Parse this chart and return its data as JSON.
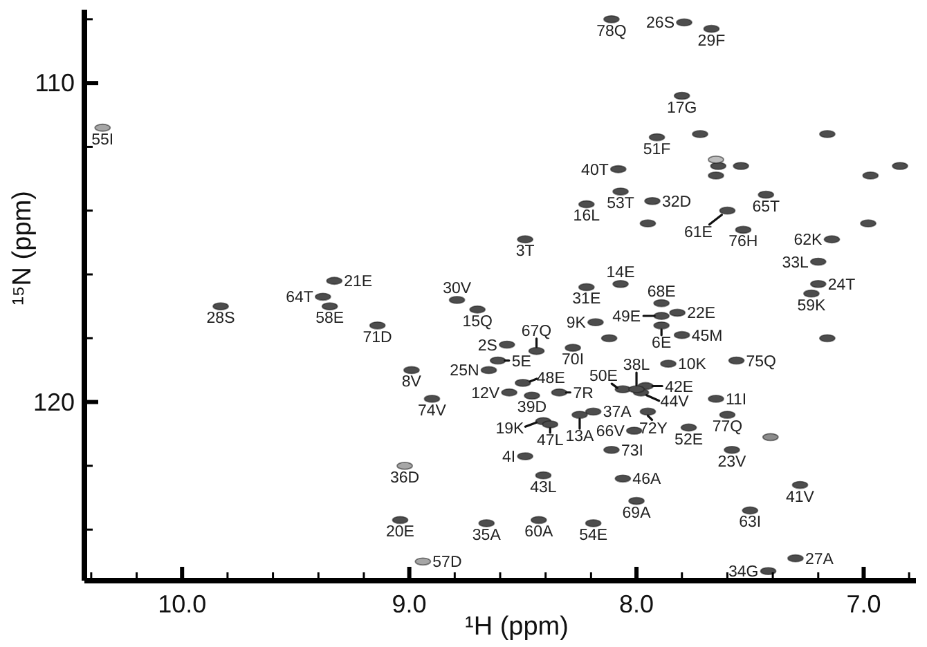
{
  "chart_data": {
    "type": "scatter",
    "xlabel": "¹H (ppm)",
    "ylabel": "¹⁵N (ppm)",
    "marker": "circle",
    "xlim": [
      10.43,
      6.77
    ],
    "ylim": [
      125.6,
      107.7
    ],
    "xticks": [
      {
        "value": 10.4,
        "label": null
      },
      {
        "value": 10.2,
        "label": null
      },
      {
        "value": 10,
        "label": "10.0"
      },
      {
        "value": 9.8,
        "label": null
      },
      {
        "value": 9.6,
        "label": null
      },
      {
        "value": 9.4,
        "label": null
      },
      {
        "value": 9.2,
        "label": null
      },
      {
        "value": 9,
        "label": "9.0"
      },
      {
        "value": 8.8,
        "label": null
      },
      {
        "value": 8.6,
        "label": null
      },
      {
        "value": 8.4,
        "label": null
      },
      {
        "value": 8.2,
        "label": null
      },
      {
        "value": 8,
        "label": "8.0"
      },
      {
        "value": 7.8,
        "label": null
      },
      {
        "value": 7.6,
        "label": null
      },
      {
        "value": 7.4,
        "label": null
      },
      {
        "value": 7.2,
        "label": null
      },
      {
        "value": 7,
        "label": "7.0"
      },
      {
        "value": 6.8,
        "label": null
      }
    ],
    "yticks": [
      {
        "value": 108,
        "label": null
      },
      110,
      {
        "value": 112,
        "label": null
      },
      {
        "value": 114,
        "label": null
      },
      {
        "value": 116,
        "label": null
      },
      {
        "value": 118,
        "label": null
      },
      120,
      {
        "value": 122,
        "label": null
      },
      {
        "value": 124,
        "label": null
      }
    ],
    "x": [
      10.35,
      9.33,
      9.38,
      9.35,
      9.83,
      9.14,
      8.11,
      8.08,
      8.07,
      8.22,
      8.49,
      8.07,
      8.22,
      8.79,
      7.79,
      7.67,
      7.8,
      7.91,
      7.93,
      7.43,
      7.6,
      7.53,
      7.14,
      7.2,
      7.2,
      7.23,
      7.89,
      7.89,
      7.82,
      7.89,
      7.8,
      7.86,
      7.56,
      7.96,
      7.98,
      7.65,
      7.95,
      7.6,
      7.77,
      7.58,
      7.28,
      7.5,
      7.3,
      7.42,
      8.7,
      8.44,
      8.57,
      8.28,
      8.18,
      8.61,
      8.99,
      8.65,
      8.5,
      8.56,
      8.46,
      8.34,
      8.9,
      8.06,
      8.0,
      8.19,
      8.25,
      8.41,
      8.38,
      8.01,
      8.49,
      8.11,
      8.06,
      8.41,
      9.02,
      8.0,
      9.04,
      8.66,
      8.43,
      8.19,
      8.94,
      7.72,
      7.16,
      7.64,
      7.65,
      7.54,
      6.97,
      6.84,
      7.95,
      6.98,
      8.12,
      7.16,
      7.41,
      7.65
    ],
    "values": [
      111.4,
      116.2,
      116.7,
      117.0,
      117.0,
      117.6,
      108.0,
      112.7,
      113.4,
      113.8,
      114.9,
      116.3,
      116.4,
      116.8,
      108.1,
      108.3,
      110.4,
      111.7,
      113.7,
      113.5,
      114.0,
      114.6,
      114.9,
      115.6,
      116.3,
      116.6,
      116.9,
      117.3,
      117.2,
      117.6,
      117.9,
      118.8,
      118.7,
      119.5,
      119.7,
      119.9,
      120.3,
      120.4,
      120.8,
      121.5,
      122.6,
      123.4,
      124.9,
      125.3,
      117.1,
      118.4,
      118.2,
      118.3,
      117.5,
      118.7,
      119.0,
      119.0,
      119.4,
      119.7,
      119.8,
      119.7,
      119.9,
      119.6,
      119.6,
      120.3,
      120.4,
      120.6,
      120.7,
      120.9,
      121.7,
      121.5,
      122.4,
      122.3,
      122.0,
      123.1,
      123.7,
      123.8,
      123.7,
      123.8,
      125.0,
      111.6,
      111.6,
      112.6,
      112.9,
      112.6,
      112.9,
      112.6,
      114.4,
      114.4,
      118.0,
      118.0,
      121.1,
      112.4
    ],
    "colors": [
      "#a6a6a6",
      "#4d4d4d",
      "#4d4d4d",
      "#4d4d4d",
      "#4d4d4d",
      "#4d4d4d",
      "#4d4d4d",
      "#4d4d4d",
      "#4d4d4d",
      "#4d4d4d",
      "#4d4d4d",
      "#4d4d4d",
      "#4d4d4d",
      "#4d4d4d",
      "#4d4d4d",
      "#4d4d4d",
      "#4d4d4d",
      "#4d4d4d",
      "#4d4d4d",
      "#4d4d4d",
      "#4d4d4d",
      "#4d4d4d",
      "#4d4d4d",
      "#4d4d4d",
      "#4d4d4d",
      "#4d4d4d",
      "#4d4d4d",
      "#4d4d4d",
      "#4d4d4d",
      "#4d4d4d",
      "#4d4d4d",
      "#4d4d4d",
      "#4d4d4d",
      "#4d4d4d",
      "#4d4d4d",
      "#4d4d4d",
      "#4d4d4d",
      "#4d4d4d",
      "#4d4d4d",
      "#4d4d4d",
      "#4d4d4d",
      "#4d4d4d",
      "#4d4d4d",
      "#4d4d4d",
      "#4d4d4d",
      "#4d4d4d",
      "#4d4d4d",
      "#4d4d4d",
      "#4d4d4d",
      "#4d4d4d",
      "#4d4d4d",
      "#4d4d4d",
      "#4d4d4d",
      "#4d4d4d",
      "#4d4d4d",
      "#4d4d4d",
      "#4d4d4d",
      "#4d4d4d",
      "#4d4d4d",
      "#4d4d4d",
      "#4d4d4d",
      "#4d4d4d",
      "#4d4d4d",
      "#4d4d4d",
      "#4d4d4d",
      "#4d4d4d",
      "#4d4d4d",
      "#4d4d4d",
      "#a6a6a6",
      "#4d4d4d",
      "#4d4d4d",
      "#4d4d4d",
      "#4d4d4d",
      "#4d4d4d",
      "#a6a6a6",
      "#4d4d4d",
      "#4d4d4d",
      "#4d4d4d",
      "#4d4d4d",
      "#4d4d4d",
      "#4d4d4d",
      "#4d4d4d",
      "#4d4d4d",
      "#4d4d4d",
      "#4d4d4d",
      "#4d4d4d",
      "#8c8c8c",
      "#bdbdbd"
    ],
    "annotations": [
      {
        "text": "55I",
        "x": 10.35,
        "y": 111.4
      },
      {
        "text": "21E",
        "x": 9.33,
        "y": 116.2
      },
      {
        "text": "64T",
        "x": 9.38,
        "y": 116.7
      },
      {
        "text": "58E",
        "x": 9.35,
        "y": 117.0
      },
      {
        "text": "28S",
        "x": 9.83,
        "y": 117.0
      },
      {
        "text": "71D",
        "x": 9.14,
        "y": 117.6
      },
      {
        "text": "78Q",
        "x": 8.11,
        "y": 108.0
      },
      {
        "text": "40T",
        "x": 8.08,
        "y": 112.7
      },
      {
        "text": "53T",
        "x": 8.07,
        "y": 113.4
      },
      {
        "text": "16L",
        "x": 8.22,
        "y": 113.8
      },
      {
        "text": "3T",
        "x": 8.49,
        "y": 114.9
      },
      {
        "text": "14E",
        "x": 8.07,
        "y": 116.3
      },
      {
        "text": "31E",
        "x": 8.22,
        "y": 116.4
      },
      {
        "text": "30V",
        "x": 8.79,
        "y": 116.8
      },
      {
        "text": "26S",
        "x": 7.79,
        "y": 108.1
      },
      {
        "text": "29F",
        "x": 7.67,
        "y": 108.3
      },
      {
        "text": "17G",
        "x": 7.8,
        "y": 110.4
      },
      {
        "text": "51F",
        "x": 7.91,
        "y": 111.7
      },
      {
        "text": "32D",
        "x": 7.93,
        "y": 113.7
      },
      {
        "text": "65T",
        "x": 7.43,
        "y": 113.5
      },
      {
        "text": "61E",
        "x": 7.6,
        "y": 114.0
      },
      {
        "text": "76H",
        "x": 7.53,
        "y": 114.6
      },
      {
        "text": "62K",
        "x": 7.14,
        "y": 114.9
      },
      {
        "text": "33L",
        "x": 7.2,
        "y": 115.6
      },
      {
        "text": "24T",
        "x": 7.2,
        "y": 116.3
      },
      {
        "text": "59K",
        "x": 7.23,
        "y": 116.6
      },
      {
        "text": "68E",
        "x": 7.89,
        "y": 116.9
      },
      {
        "text": "49E",
        "x": 7.89,
        "y": 117.3
      },
      {
        "text": "22E",
        "x": 7.82,
        "y": 117.2
      },
      {
        "text": "6E",
        "x": 7.89,
        "y": 117.6
      },
      {
        "text": "45M",
        "x": 7.8,
        "y": 117.9
      },
      {
        "text": "10K",
        "x": 7.86,
        "y": 118.8
      },
      {
        "text": "75Q",
        "x": 7.56,
        "y": 118.7
      },
      {
        "text": "42E",
        "x": 7.96,
        "y": 119.5
      },
      {
        "text": "44V",
        "x": 7.98,
        "y": 119.7
      },
      {
        "text": "11I",
        "x": 7.65,
        "y": 119.9
      },
      {
        "text": "72Y",
        "x": 7.95,
        "y": 120.3
      },
      {
        "text": "77Q",
        "x": 7.6,
        "y": 120.4
      },
      {
        "text": "52E",
        "x": 7.77,
        "y": 120.8
      },
      {
        "text": "23V",
        "x": 7.58,
        "y": 121.5
      },
      {
        "text": "41V",
        "x": 7.28,
        "y": 122.6
      },
      {
        "text": "63I",
        "x": 7.5,
        "y": 123.4
      },
      {
        "text": "27A",
        "x": 7.3,
        "y": 124.9
      },
      {
        "text": "34G",
        "x": 7.42,
        "y": 125.3
      },
      {
        "text": "15Q",
        "x": 8.7,
        "y": 117.1
      },
      {
        "text": "67Q",
        "x": 8.44,
        "y": 118.4
      },
      {
        "text": "2S",
        "x": 8.57,
        "y": 118.2
      },
      {
        "text": "70I",
        "x": 8.28,
        "y": 118.3
      },
      {
        "text": "9K",
        "x": 8.18,
        "y": 117.5
      },
      {
        "text": "5E",
        "x": 8.61,
        "y": 118.7
      },
      {
        "text": "8V",
        "x": 8.99,
        "y": 119.0
      },
      {
        "text": "25N",
        "x": 8.65,
        "y": 119.0
      },
      {
        "text": "48E",
        "x": 8.5,
        "y": 119.4
      },
      {
        "text": "12V",
        "x": 8.56,
        "y": 119.7
      },
      {
        "text": "39D",
        "x": 8.46,
        "y": 119.8
      },
      {
        "text": "7R",
        "x": 8.34,
        "y": 119.7
      },
      {
        "text": "74V",
        "x": 8.9,
        "y": 119.9
      },
      {
        "text": "50E",
        "x": 8.06,
        "y": 119.6
      },
      {
        "text": "38L",
        "x": 8.0,
        "y": 119.6
      },
      {
        "text": "37A",
        "x": 8.19,
        "y": 120.3
      },
      {
        "text": "13A",
        "x": 8.25,
        "y": 120.4
      },
      {
        "text": "19K",
        "x": 8.41,
        "y": 120.6
      },
      {
        "text": "47L",
        "x": 8.38,
        "y": 120.7
      },
      {
        "text": "66V",
        "x": 8.01,
        "y": 120.9
      },
      {
        "text": "4I",
        "x": 8.49,
        "y": 121.7
      },
      {
        "text": "73I",
        "x": 8.11,
        "y": 121.5
      },
      {
        "text": "46A",
        "x": 8.06,
        "y": 122.4
      },
      {
        "text": "43L",
        "x": 8.41,
        "y": 122.3
      },
      {
        "text": "36D",
        "x": 9.02,
        "y": 122.0
      },
      {
        "text": "69A",
        "x": 8.0,
        "y": 123.1
      },
      {
        "text": "20E",
        "x": 9.04,
        "y": 123.7
      },
      {
        "text": "35A",
        "x": 8.66,
        "y": 123.8
      },
      {
        "text": "60A",
        "x": 8.43,
        "y": 123.7
      },
      {
        "text": "54E",
        "x": 8.19,
        "y": 123.8
      },
      {
        "text": "57D",
        "x": 8.94,
        "y": 125.0
      }
    ]
  }
}
